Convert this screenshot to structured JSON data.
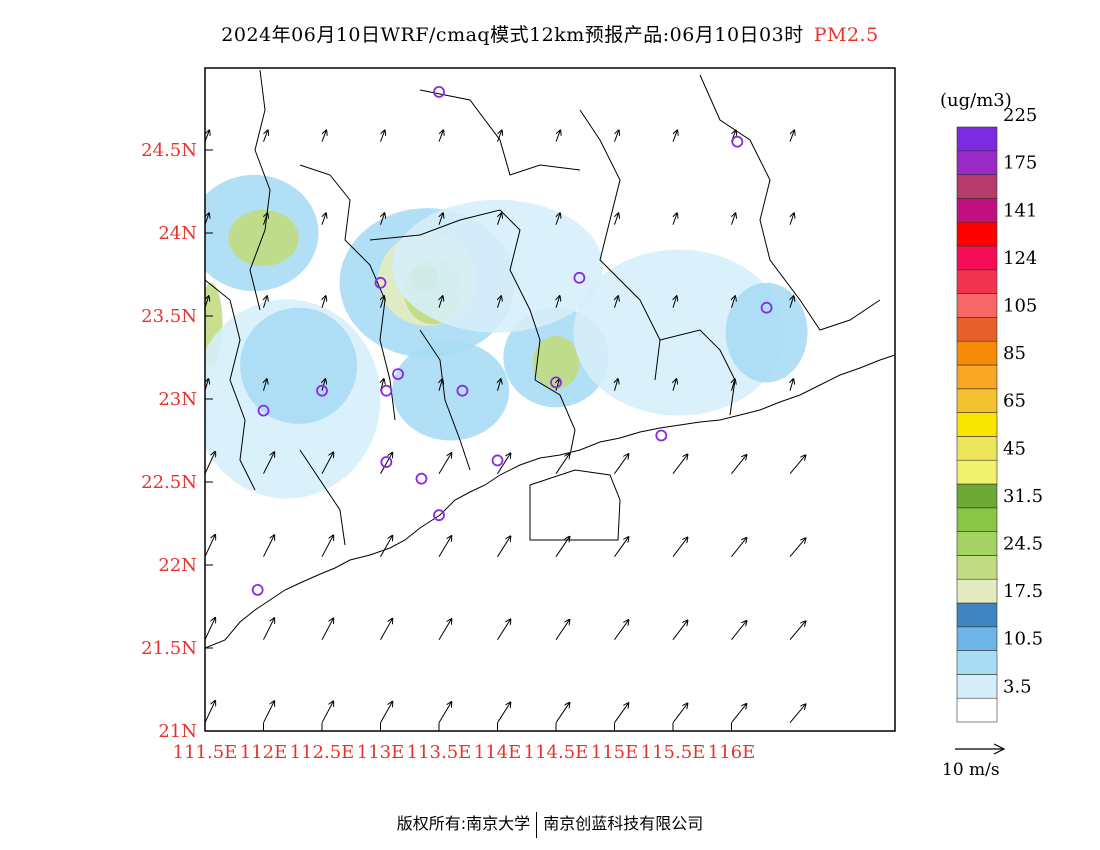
{
  "title": {
    "main": "2024年06月10日WRF/cmaq模式12km预报产品:06月10日03时",
    "pollutant": "PM2.5"
  },
  "map": {
    "lon_range": [
      111.5,
      116.5
    ],
    "lat_range": [
      21.0,
      25.0
    ],
    "lat_ticks": [
      {
        "value": 21.0,
        "label": "21N"
      },
      {
        "value": 21.5,
        "label": "21.5N"
      },
      {
        "value": 22.0,
        "label": "22N"
      },
      {
        "value": 22.5,
        "label": "22.5N"
      },
      {
        "value": 23.0,
        "label": "23N"
      },
      {
        "value": 23.5,
        "label": "23.5N"
      },
      {
        "value": 24.0,
        "label": "24N"
      },
      {
        "value": 24.5,
        "label": "24.5N"
      }
    ],
    "lon_ticks": [
      {
        "value": 111.5,
        "label": "111.5E"
      },
      {
        "value": 112.0,
        "label": "112E"
      },
      {
        "value": 112.5,
        "label": "112.5E"
      },
      {
        "value": 113.0,
        "label": "113E"
      },
      {
        "value": 113.5,
        "label": "113.5E"
      },
      {
        "value": 114.0,
        "label": "114E"
      },
      {
        "value": 114.5,
        "label": "114.5E"
      },
      {
        "value": 115.0,
        "label": "115E"
      },
      {
        "value": 115.5,
        "label": "115.5E"
      },
      {
        "value": 116.0,
        "label": "116E"
      }
    ],
    "concentration_blobs": [
      {
        "lon": 111.92,
        "lat": 24.0,
        "rx": 0.55,
        "ry": 0.35,
        "level": "10.5"
      },
      {
        "lon": 112.0,
        "lat": 23.97,
        "rx": 0.3,
        "ry": 0.17,
        "level": "24.5"
      },
      {
        "lon": 113.4,
        "lat": 23.7,
        "rx": 0.75,
        "ry": 0.45,
        "level": "10.5"
      },
      {
        "lon": 113.4,
        "lat": 23.72,
        "rx": 0.42,
        "ry": 0.28,
        "level": "17.5"
      },
      {
        "lon": 113.45,
        "lat": 23.65,
        "rx": 0.25,
        "ry": 0.2,
        "level": "24.5"
      },
      {
        "lon": 113.38,
        "lat": 23.73,
        "rx": 0.12,
        "ry": 0.08,
        "level": "31.5"
      },
      {
        "lon": 114.5,
        "lat": 23.25,
        "rx": 0.45,
        "ry": 0.3,
        "level": "10.5"
      },
      {
        "lon": 114.5,
        "lat": 23.22,
        "rx": 0.2,
        "ry": 0.16,
        "level": "24.5"
      },
      {
        "lon": 111.55,
        "lat": 23.45,
        "rx": 0.1,
        "ry": 0.25,
        "level": "24.5"
      },
      {
        "lon": 115.55,
        "lat": 23.4,
        "rx": 0.9,
        "ry": 0.5,
        "level": "3.5"
      },
      {
        "lon": 116.3,
        "lat": 23.4,
        "rx": 0.35,
        "ry": 0.3,
        "level": "10.5"
      },
      {
        "lon": 114.0,
        "lat": 23.8,
        "rx": 0.9,
        "ry": 0.4,
        "level": "3.5"
      },
      {
        "lon": 112.2,
        "lat": 23.0,
        "rx": 0.8,
        "ry": 0.6,
        "level": "3.5"
      },
      {
        "lon": 113.6,
        "lat": 23.05,
        "rx": 0.5,
        "ry": 0.3,
        "level": "10.5"
      },
      {
        "lon": 112.3,
        "lat": 23.2,
        "rx": 0.5,
        "ry": 0.35,
        "level": "10.5"
      }
    ],
    "stations": [
      {
        "lon": 113.5,
        "lat": 24.85
      },
      {
        "lon": 116.05,
        "lat": 24.55
      },
      {
        "lon": 114.7,
        "lat": 23.73
      },
      {
        "lon": 113.0,
        "lat": 23.7
      },
      {
        "lon": 116.3,
        "lat": 23.55
      },
      {
        "lon": 113.15,
        "lat": 23.15
      },
      {
        "lon": 112.5,
        "lat": 23.05
      },
      {
        "lon": 113.05,
        "lat": 23.05
      },
      {
        "lon": 113.7,
        "lat": 23.05
      },
      {
        "lon": 114.5,
        "lat": 23.1
      },
      {
        "lon": 112.0,
        "lat": 22.93
      },
      {
        "lon": 115.4,
        "lat": 22.78
      },
      {
        "lon": 113.05,
        "lat": 22.62
      },
      {
        "lon": 113.35,
        "lat": 22.52
      },
      {
        "lon": 114.0,
        "lat": 22.63
      },
      {
        "lon": 113.5,
        "lat": 22.3
      },
      {
        "lon": 111.95,
        "lat": 21.85
      }
    ],
    "stations_color": "#8a2be2",
    "wind_field": "southerly to south-westerly, strengthening over the sea"
  },
  "legend": {
    "unit": "(ug/m3)",
    "colors": [
      "#ffffff",
      "#d6eefa",
      "#a8dcf5",
      "#6db5e6",
      "#3f85c2",
      "#e3ecc0",
      "#c1dc82",
      "#a5d363",
      "#8ac545",
      "#6ea836",
      "#eff26e",
      "#ede65b",
      "#f8e600",
      "#f4c12f",
      "#f9a826",
      "#f68b07",
      "#e7602c",
      "#f66767",
      "#f23352",
      "#f50d55",
      "#ff0000",
      "#c2117e",
      "#b53c6a",
      "#9b2ac6",
      "#7d2ae3"
    ],
    "labels": [
      "3.5",
      "10.5",
      "17.5",
      "24.5",
      "31.5",
      "45",
      "65",
      "85",
      "105",
      "124",
      "141",
      "175",
      "225"
    ]
  },
  "wind_scale": {
    "label": "10 m/s"
  },
  "footer": {
    "left": "版权所有:南京大学",
    "right": "南京创蓝科技有限公司"
  }
}
